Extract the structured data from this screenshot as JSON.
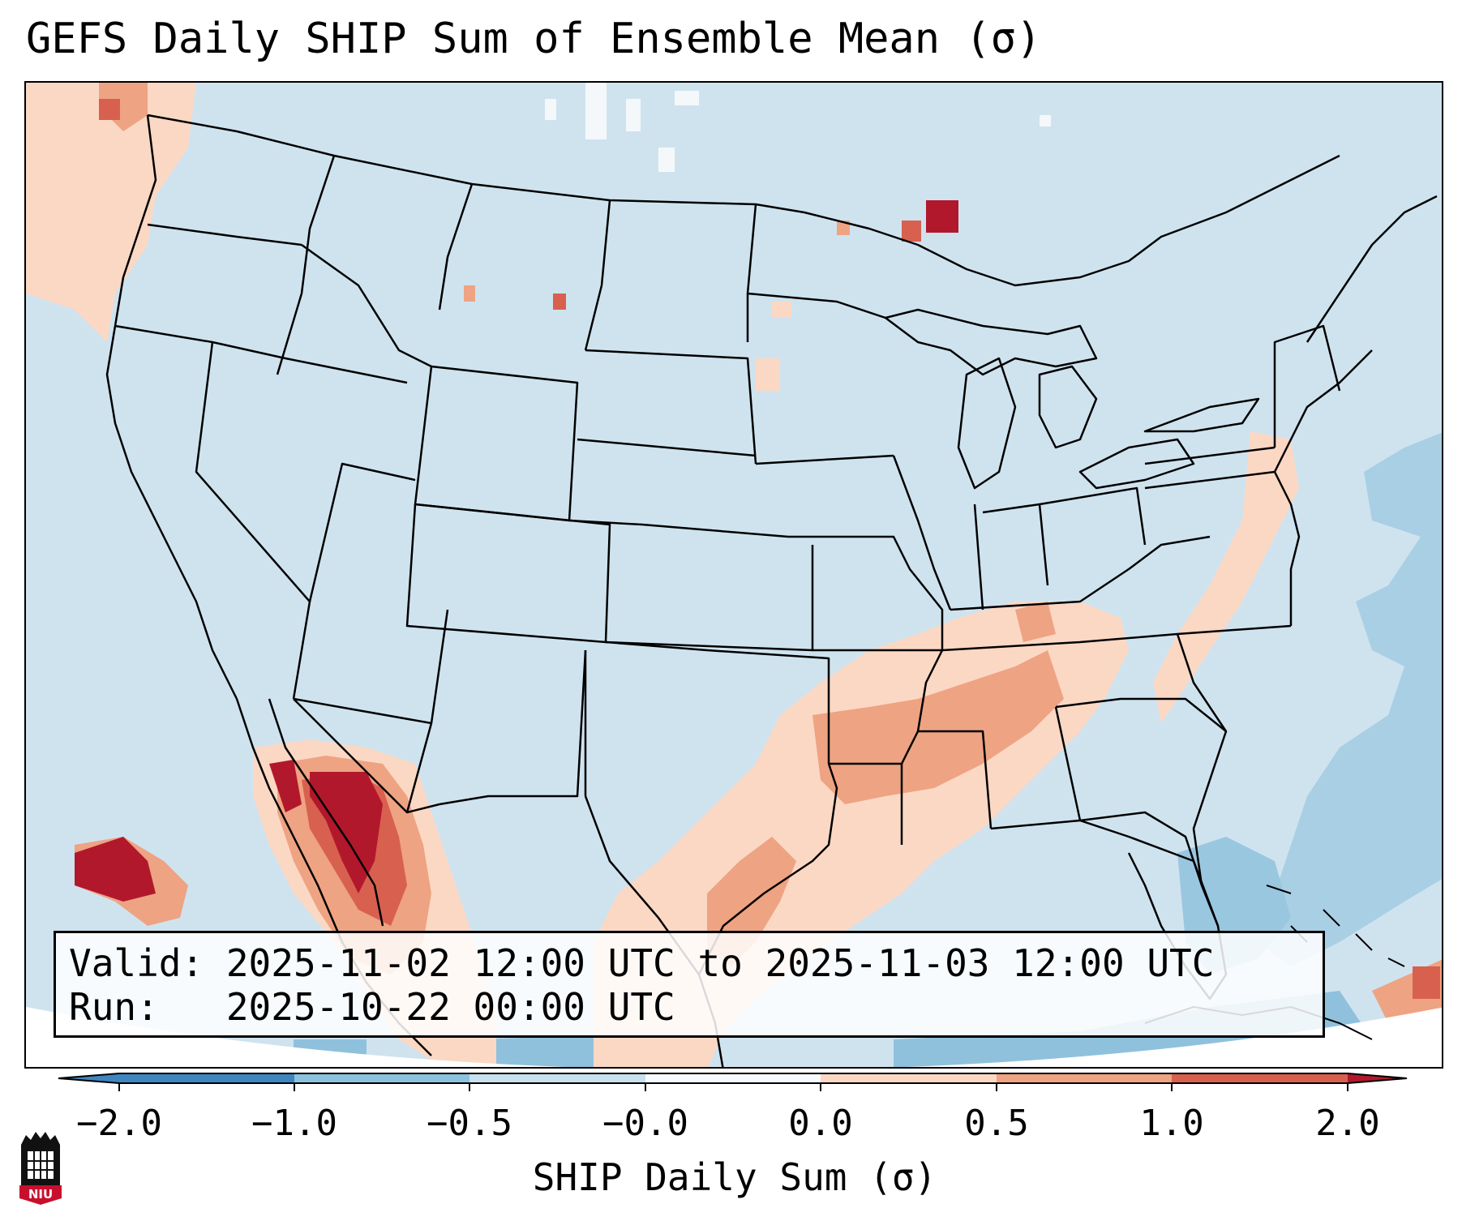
{
  "title": "GEFS Daily SHIP Sum of Ensemble Mean (σ)",
  "valid_line": "Valid: 2025-11-02 12:00 UTC to 2025-11-03 12:00 UTC",
  "run_line": "Run:   2025-10-22 00:00 UTC",
  "colorbar": {
    "title": "SHIP Daily Sum (σ)",
    "ticks": [
      "−2.0",
      "−1.0",
      "−0.5",
      "−0.0",
      "0.0",
      "0.5",
      "1.0",
      "2.0"
    ],
    "colors": [
      "#3f86c0",
      "#8dc2de",
      "#c7e0ed",
      "#f8fbfd",
      "#fbd8c4",
      "#eea383",
      "#d8604f",
      "#b2182b"
    ]
  },
  "map": {
    "background": "#cfe3ef",
    "region": "CONUS"
  },
  "logo": {
    "text": "NIU"
  }
}
